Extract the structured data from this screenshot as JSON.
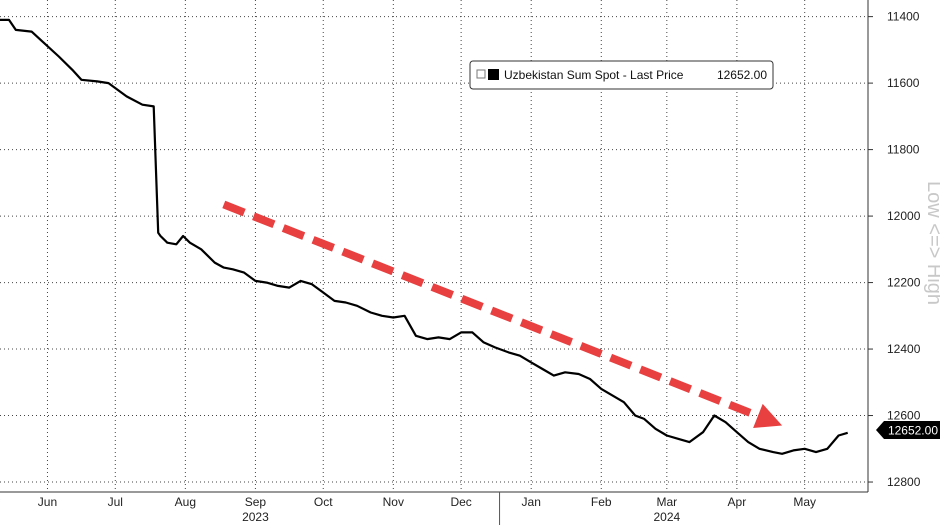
{
  "chart_data": {
    "type": "line",
    "series": [
      {
        "name": "Uzbekistan Sum Spot - Last Price",
        "color": "#000000",
        "x": [
          "2023-05-25",
          "2023-05-29",
          "2023-06-01",
          "2023-06-08",
          "2023-06-12",
          "2023-06-20",
          "2023-06-26",
          "2023-06-30",
          "2023-07-07",
          "2023-07-12",
          "2023-07-20",
          "2023-07-27",
          "2023-08-01",
          "2023-08-03",
          "2023-08-04",
          "2023-08-07",
          "2023-08-11",
          "2023-08-14",
          "2023-08-17",
          "2023-08-22",
          "2023-08-28",
          "2023-09-01",
          "2023-09-05",
          "2023-09-10",
          "2023-09-15",
          "2023-09-20",
          "2023-09-25",
          "2023-09-30",
          "2023-10-05",
          "2023-10-10",
          "2023-10-15",
          "2023-10-20",
          "2023-10-25",
          "2023-10-30",
          "2023-11-05",
          "2023-11-10",
          "2023-11-15",
          "2023-11-20",
          "2023-11-25",
          "2023-11-30",
          "2023-12-05",
          "2023-12-10",
          "2023-12-15",
          "2023-12-20",
          "2023-12-25",
          "2023-12-30",
          "2024-01-05",
          "2024-01-10",
          "2024-01-15",
          "2024-01-20",
          "2024-01-25",
          "2024-01-30",
          "2024-02-05",
          "2024-02-10",
          "2024-02-15",
          "2024-02-20",
          "2024-02-25",
          "2024-03-01",
          "2024-03-05",
          "2024-03-10",
          "2024-03-15",
          "2024-03-20",
          "2024-03-25",
          "2024-03-31",
          "2024-04-05",
          "2024-04-10",
          "2024-04-15",
          "2024-04-20",
          "2024-04-25",
          "2024-05-01",
          "2024-05-05",
          "2024-05-10",
          "2024-05-15",
          "2024-05-20",
          "2024-05-25",
          "2024-05-30",
          "2024-06-03"
        ],
        "values": [
          11410,
          11410,
          11440,
          11445,
          11470,
          11520,
          11560,
          11590,
          11595,
          11600,
          11640,
          11665,
          11670,
          12050,
          12060,
          12080,
          12085,
          12060,
          12080,
          12100,
          12140,
          12155,
          12160,
          12170,
          12195,
          12200,
          12210,
          12215,
          12195,
          12205,
          12230,
          12255,
          12260,
          12270,
          12290,
          12300,
          12305,
          12300,
          12360,
          12370,
          12365,
          12370,
          12350,
          12350,
          12380,
          12395,
          12410,
          12420,
          12440,
          12460,
          12480,
          12470,
          12475,
          12490,
          12520,
          12540,
          12560,
          12600,
          12610,
          12640,
          12660,
          12670,
          12680,
          12650,
          12600,
          12620,
          12650,
          12680,
          12700,
          12710,
          12715,
          12705,
          12700,
          12710,
          12700,
          12660,
          12652
        ]
      }
    ],
    "annotations": [
      {
        "type": "arrow",
        "color": "#e84040",
        "style": "dashed",
        "from": [
          "2023-09-01",
          11965
        ],
        "to": [
          "2024-05-05",
          12630
        ]
      }
    ],
    "legend": {
      "label": "Uzbekistan Sum Spot - Last Price",
      "value": "12652.00",
      "position": "top-right"
    },
    "last_value_label": "12652.00",
    "x_ticks": [
      "May",
      "Jun",
      "Jul",
      "Aug",
      "Sep",
      "Oct",
      "Nov",
      "Dec",
      "Jan",
      "Feb",
      "Mar",
      "Apr",
      "May"
    ],
    "x_tick_dates": [
      "2023-05-15",
      "2023-06-15",
      "2023-07-15",
      "2023-08-15",
      "2023-09-15",
      "2023-10-15",
      "2023-11-15",
      "2023-12-15",
      "2024-01-15",
      "2024-02-15",
      "2024-03-15",
      "2024-04-15",
      "2024-05-15"
    ],
    "x_years": [
      {
        "label": "2023",
        "date": "2023-09-15"
      },
      {
        "label": "2024",
        "date": "2024-03-15"
      }
    ],
    "xlim": [
      "2023-05-25",
      "2024-06-12"
    ],
    "y_ticks": [
      11400,
      11600,
      11800,
      12000,
      12200,
      12400,
      12600,
      12800
    ],
    "ylim": [
      11350,
      12830
    ],
    "y_inverted": true,
    "y_axis_side": "right",
    "side_label": "Low <=> High",
    "grid": true,
    "title": "",
    "xlabel": "",
    "ylabel": ""
  }
}
